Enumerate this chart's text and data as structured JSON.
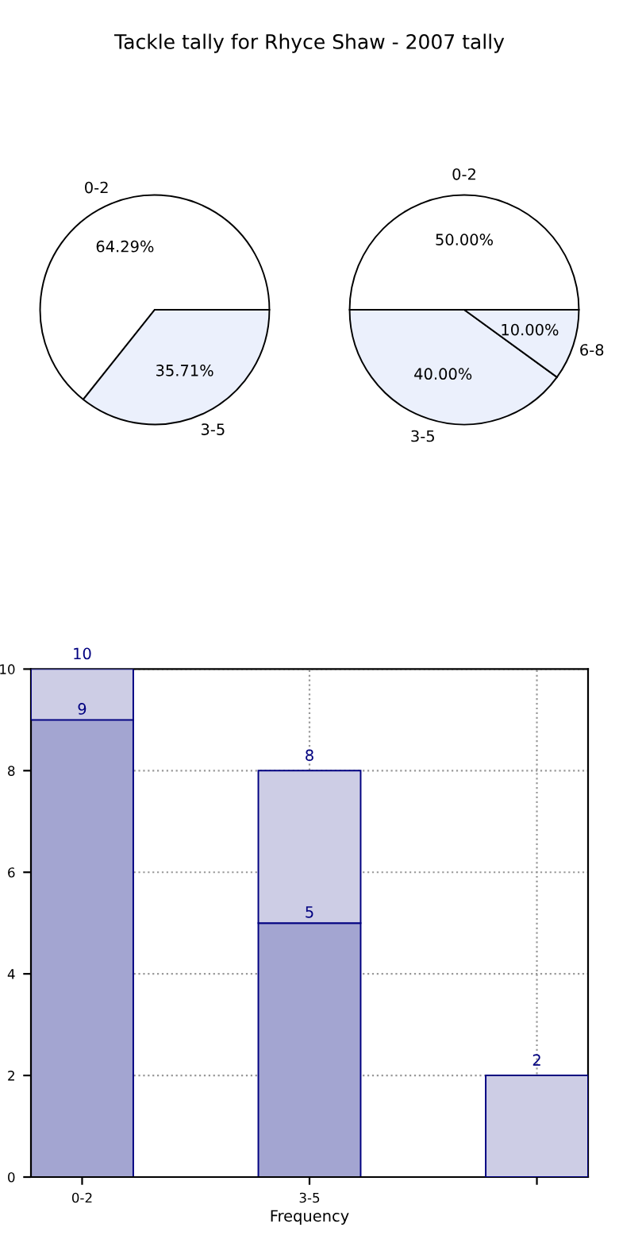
{
  "chart_data": [
    {
      "type": "pie",
      "title": "Tackle tally for Rhyce Shaw - 2007 tally",
      "categories": [
        "0-2",
        "3-5"
      ],
      "values": [
        64.29,
        35.71
      ],
      "colors": [
        "#ffffff",
        "#ebf0fc"
      ],
      "value_labels": [
        "64.29%",
        "35.71%"
      ]
    },
    {
      "type": "pie",
      "categories": [
        "0-2",
        "3-5",
        "6-8"
      ],
      "values": [
        50.0,
        40.0,
        10.0
      ],
      "colors": [
        "#ffffff",
        "#ebf0fc",
        "#ebf0fc"
      ],
      "value_labels": [
        "50.00%",
        "40.00%",
        "10.00%"
      ]
    },
    {
      "type": "bar",
      "xlabel": "Frequency",
      "categories": [
        "0-2",
        "3-5",
        null
      ],
      "stacked": true,
      "series": [
        {
          "color": "#a3a5d1",
          "values": [
            9,
            5,
            null
          ],
          "value_labels": [
            "9",
            "5",
            null
          ]
        },
        {
          "color": "#cdcde5",
          "values": [
            1,
            3,
            2
          ]
        }
      ],
      "totals": [
        "10",
        "8",
        "2"
      ],
      "ylim": [
        0,
        10
      ],
      "yticks": [
        0,
        2,
        4,
        6,
        8,
        10
      ],
      "grid": true
    }
  ]
}
